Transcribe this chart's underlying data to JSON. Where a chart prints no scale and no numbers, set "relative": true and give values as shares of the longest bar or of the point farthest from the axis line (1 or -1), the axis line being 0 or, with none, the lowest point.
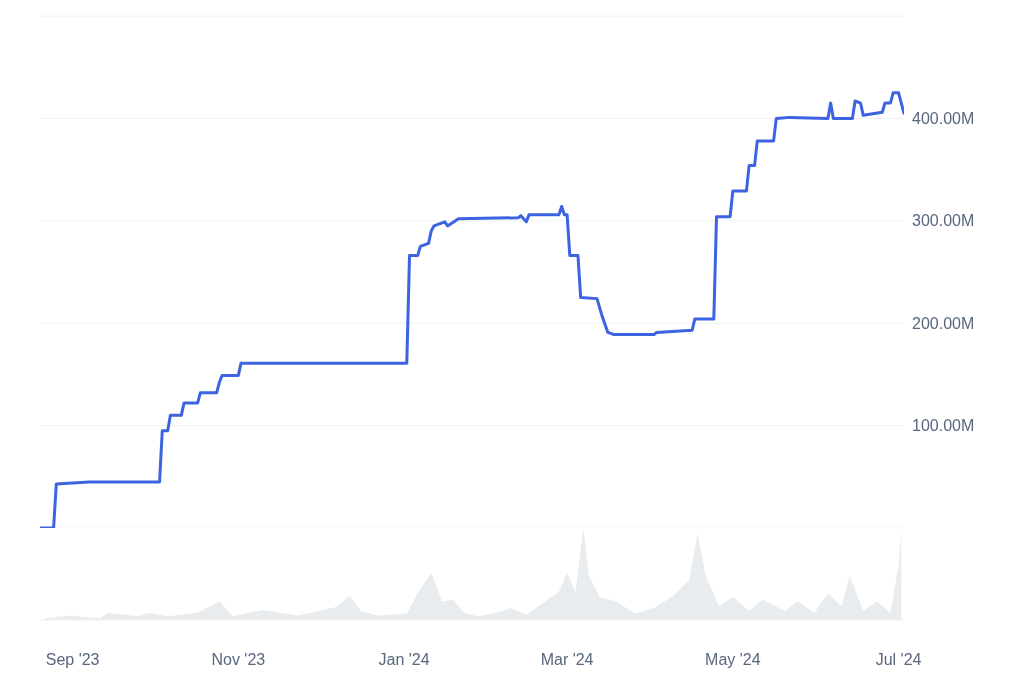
{
  "chart_data": [
    {
      "type": "line",
      "color": "#3d63e0",
      "marker": "none",
      "grid": "y",
      "tick_labels": "y",
      "x": [
        "2023-08-20",
        "2023-08-25",
        "2023-08-26",
        "2023-09-07",
        "2023-10-03",
        "2023-10-04",
        "2023-10-06",
        "2023-10-07",
        "2023-10-11",
        "2023-10-12",
        "2023-10-17",
        "2023-10-18",
        "2023-10-24",
        "2023-10-25",
        "2023-10-26",
        "2023-11-01",
        "2023-11-02",
        "2024-01-02",
        "2024-01-03",
        "2024-01-06",
        "2024-01-07",
        "2024-01-10",
        "2024-01-11",
        "2024-01-12",
        "2024-01-16",
        "2024-01-17",
        "2024-01-21",
        "2024-02-12",
        "2024-02-13",
        "2024-02-15",
        "2024-02-16",
        "2024-02-27",
        "2024-02-28",
        "2024-02-29",
        "2024-03-01",
        "2024-03-02",
        "2024-03-05",
        "2024-03-06",
        "2024-03-12",
        "2024-03-14",
        "2024-03-16",
        "2024-03-18",
        "2024-04-02",
        "2024-04-03",
        "2024-04-16",
        "2024-04-17",
        "2024-04-24",
        "2024-04-25",
        "2024-04-30",
        "2024-05-01",
        "2024-05-06",
        "2024-05-07",
        "2024-05-09",
        "2024-05-10",
        "2024-05-16",
        "2024-05-17",
        "2024-05-22",
        "2024-06-05",
        "2024-06-06",
        "2024-06-07",
        "2024-06-14",
        "2024-06-15",
        "2024-06-17",
        "2024-06-18",
        "2024-06-25",
        "2024-06-26",
        "2024-06-28",
        "2024-06-29",
        "2024-07-01",
        "2024-07-03"
      ],
      "values": [
        0,
        0,
        43,
        45,
        45,
        95,
        95,
        110,
        110,
        122,
        122,
        132,
        132,
        142,
        149,
        149,
        161,
        161,
        266,
        266,
        275,
        278,
        290,
        295,
        299,
        295,
        302,
        303,
        305,
        299,
        306,
        306,
        314,
        306,
        306,
        266,
        266,
        225,
        224,
        206,
        191,
        189,
        189,
        191,
        193,
        204,
        204,
        304,
        304,
        329,
        329,
        354,
        354,
        378,
        378,
        400,
        401,
        400,
        415,
        400,
        400,
        417,
        415,
        403,
        406,
        415,
        415,
        425,
        425,
        405
      ],
      "xlim": [
        "2023-08-20",
        "2024-07-03"
      ],
      "ylim": [
        0,
        500
      ],
      "yticks": [
        {
          "value": 100,
          "label": "100.00M"
        },
        {
          "value": 200,
          "label": "200.00M"
        },
        {
          "value": 300,
          "label": "300.00M"
        },
        {
          "value": 400,
          "label": "400.00M"
        }
      ]
    },
    {
      "type": "area",
      "color": "#e9ecef",
      "relative": true,
      "tick_labels": "x",
      "x": [
        "2023-08-22",
        "2023-08-31",
        "2023-09-11",
        "2023-09-14",
        "2023-09-25",
        "2023-09-29",
        "2023-10-06",
        "2023-10-17",
        "2023-10-25",
        "2023-10-30",
        "2023-11-10",
        "2023-11-23",
        "2023-12-07",
        "2023-12-12",
        "2023-12-16",
        "2023-12-22",
        "2024-01-02",
        "2024-01-06",
        "2024-01-11",
        "2024-01-15",
        "2024-01-19",
        "2024-01-23",
        "2024-01-28",
        "2024-02-04",
        "2024-02-09",
        "2024-02-15",
        "2024-02-22",
        "2024-02-27",
        "2024-03-01",
        "2024-03-04",
        "2024-03-07",
        "2024-03-09",
        "2024-03-13",
        "2024-03-19",
        "2024-03-26",
        "2024-04-02",
        "2024-04-09",
        "2024-04-15",
        "2024-04-18",
        "2024-04-21",
        "2024-04-26",
        "2024-05-01",
        "2024-05-07",
        "2024-05-12",
        "2024-05-20",
        "2024-05-25",
        "2024-05-31",
        "2024-06-05",
        "2024-06-10",
        "2024-06-13",
        "2024-06-18",
        "2024-06-23",
        "2024-06-28",
        "2024-07-01",
        "2024-07-02"
      ],
      "values": [
        0.02,
        0.05,
        0.02,
        0.08,
        0.04,
        0.08,
        0.04,
        0.08,
        0.2,
        0.04,
        0.11,
        0.05,
        0.14,
        0.26,
        0.1,
        0.05,
        0.07,
        0.29,
        0.51,
        0.2,
        0.22,
        0.08,
        0.04,
        0.08,
        0.13,
        0.06,
        0.2,
        0.31,
        0.51,
        0.3,
        1,
        0.48,
        0.25,
        0.2,
        0.07,
        0.13,
        0.26,
        0.44,
        0.94,
        0.48,
        0.15,
        0.25,
        0.1,
        0.22,
        0.1,
        0.2,
        0.08,
        0.29,
        0.15,
        0.48,
        0.1,
        0.2,
        0.08,
        0.6,
        0.97
      ],
      "xlim": [
        "2023-08-20",
        "2024-07-03"
      ],
      "xticks": [
        {
          "value": "2023-09-01",
          "label": "Sep '23"
        },
        {
          "value": "2023-11-01",
          "label": "Nov '23"
        },
        {
          "value": "2024-01-01",
          "label": "Jan '24"
        },
        {
          "value": "2024-03-01",
          "label": "Mar '24"
        },
        {
          "value": "2024-05-01",
          "label": "May '24"
        },
        {
          "value": "2024-07-01",
          "label": "Jul '24"
        }
      ]
    }
  ]
}
